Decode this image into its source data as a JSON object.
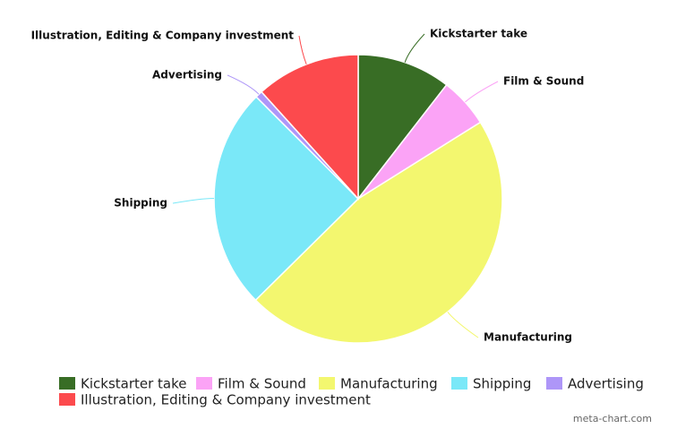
{
  "chart_data": {
    "type": "pie",
    "categories": [
      "Kickstarter take",
      "Film & Sound",
      "Manufacturing",
      "Shipping",
      "Advertising",
      "Illustration, Editing & Company investment"
    ],
    "values": [
      10.5,
      5.6,
      46.5,
      24.9,
      0.8,
      11.7
    ],
    "colors": [
      "#386d25",
      "#fba3f6",
      "#f3f76f",
      "#7ae8f8",
      "#ae96f8",
      "#fc4a4d"
    ],
    "legend": "bottom",
    "credit": "meta-chart.com"
  }
}
